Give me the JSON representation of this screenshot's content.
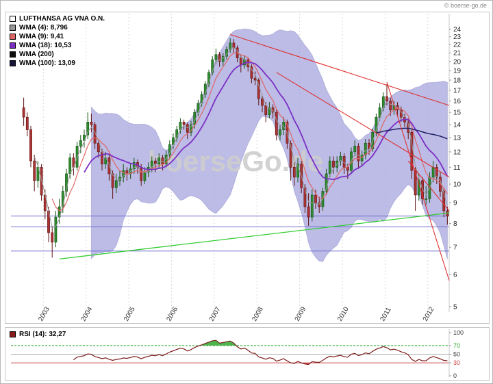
{
  "page": {
    "copyright": "© boerse-go.de"
  },
  "chart_data": [
    {
      "type": "candlestick",
      "instrument": "LUFTHANSA AG VNA O.N.",
      "interval": "monthly",
      "start": "2002-07",
      "legend": [
        {
          "label": "LUFTHANSA AG VNA O.N.",
          "swatch": "#ffffff"
        },
        {
          "label": "WMA (4): 8,796",
          "swatch": "#9a9a9a"
        },
        {
          "label": "WMA (9): 9,41",
          "swatch": "#e06565"
        },
        {
          "label": "WMA (18): 10,53",
          "swatch": "#7c2fc4"
        },
        {
          "label": "WMA (200)",
          "swatch": "#101010"
        },
        {
          "label": "WMA (100): 13,09",
          "swatch": "#16163a"
        }
      ],
      "y_axis": {
        "scale": "log",
        "min": 4.85,
        "max": 26.0,
        "ticks": [
          24,
          23,
          22,
          21,
          20,
          19,
          18,
          17,
          16,
          15,
          14,
          13,
          12,
          11,
          10,
          9,
          8,
          7,
          6,
          5
        ]
      },
      "x_ticks": [
        {
          "label": "2003",
          "index": 6
        },
        {
          "label": "2004",
          "index": 18
        },
        {
          "label": "2005",
          "index": 30
        },
        {
          "label": "2006",
          "index": 42
        },
        {
          "label": "2007",
          "index": 54
        },
        {
          "label": "2008",
          "index": 66
        },
        {
          "label": "2009",
          "index": 78
        },
        {
          "label": "2010",
          "index": 90
        },
        {
          "label": "2011",
          "index": 102
        },
        {
          "label": "2012",
          "index": 114
        }
      ],
      "ohlc": [
        [
          15.4,
          16.3,
          13.9,
          14.6
        ],
        [
          14.6,
          15.0,
          13.1,
          13.6
        ],
        [
          13.6,
          13.9,
          11.0,
          11.4
        ],
        [
          11.4,
          11.8,
          9.6,
          10.2
        ],
        [
          10.2,
          11.4,
          9.8,
          11.0
        ],
        [
          11.0,
          11.2,
          9.1,
          9.4
        ],
        [
          9.4,
          9.7,
          8.2,
          8.6
        ],
        [
          8.6,
          8.8,
          7.2,
          7.6
        ],
        [
          7.6,
          7.9,
          6.6,
          7.2
        ],
        [
          7.2,
          8.6,
          7.0,
          8.3
        ],
        [
          8.3,
          9.2,
          8.0,
          8.8
        ],
        [
          8.8,
          9.9,
          8.5,
          9.6
        ],
        [
          9.6,
          10.9,
          9.3,
          10.6
        ],
        [
          10.6,
          11.9,
          10.3,
          11.6
        ],
        [
          11.6,
          11.9,
          10.5,
          11.0
        ],
        [
          11.0,
          12.7,
          10.8,
          12.4
        ],
        [
          12.4,
          13.2,
          11.9,
          12.8
        ],
        [
          12.8,
          13.6,
          12.3,
          13.2
        ],
        [
          13.2,
          15.0,
          12.9,
          14.2
        ],
        [
          14.2,
          14.9,
          13.4,
          14.0
        ],
        [
          14.0,
          14.2,
          12.2,
          12.6
        ],
        [
          12.6,
          12.9,
          11.6,
          12.0
        ],
        [
          12.0,
          12.2,
          10.8,
          11.2
        ],
        [
          11.2,
          12.0,
          10.9,
          11.6
        ],
        [
          11.6,
          11.8,
          10.2,
          10.6
        ],
        [
          10.6,
          10.8,
          9.2,
          9.8
        ],
        [
          9.8,
          10.6,
          9.5,
          10.2
        ],
        [
          10.2,
          10.8,
          9.9,
          10.4
        ],
        [
          10.4,
          11.2,
          10.1,
          10.8
        ],
        [
          10.8,
          11.0,
          10.2,
          10.6
        ],
        [
          10.6,
          11.2,
          10.3,
          10.9
        ],
        [
          10.9,
          11.6,
          10.6,
          11.3
        ],
        [
          11.3,
          11.5,
          10.6,
          11.0
        ],
        [
          11.0,
          11.2,
          9.9,
          10.2
        ],
        [
          10.2,
          11.0,
          10.0,
          10.7
        ],
        [
          10.7,
          11.3,
          10.4,
          11.0
        ],
        [
          11.0,
          11.7,
          10.7,
          11.4
        ],
        [
          11.4,
          11.6,
          10.7,
          11.2
        ],
        [
          11.2,
          11.9,
          10.9,
          11.6
        ],
        [
          11.6,
          11.8,
          10.8,
          11.2
        ],
        [
          11.2,
          12.1,
          11.0,
          11.8
        ],
        [
          11.8,
          12.8,
          11.5,
          12.5
        ],
        [
          12.5,
          13.3,
          12.2,
          13.0
        ],
        [
          13.0,
          13.9,
          12.7,
          13.6
        ],
        [
          13.6,
          14.5,
          13.3,
          14.2
        ],
        [
          14.2,
          14.4,
          13.6,
          14.0
        ],
        [
          14.0,
          14.2,
          12.9,
          13.4
        ],
        [
          13.4,
          14.3,
          13.1,
          14.0
        ],
        [
          14.0,
          15.3,
          13.7,
          15.0
        ],
        [
          15.0,
          16.1,
          14.7,
          15.8
        ],
        [
          15.8,
          16.9,
          15.5,
          16.6
        ],
        [
          16.6,
          17.9,
          16.3,
          17.6
        ],
        [
          17.6,
          19.1,
          17.3,
          18.8
        ],
        [
          18.8,
          20.6,
          18.5,
          20.2
        ],
        [
          20.2,
          21.5,
          19.7,
          20.8
        ],
        [
          20.8,
          21.1,
          19.4,
          20.0
        ],
        [
          20.0,
          21.0,
          19.5,
          20.6
        ],
        [
          20.6,
          21.8,
          20.2,
          21.4
        ],
        [
          21.4,
          22.8,
          21.0,
          22.2
        ],
        [
          22.2,
          22.7,
          21.0,
          21.6
        ],
        [
          21.6,
          21.9,
          19.9,
          20.4
        ],
        [
          20.4,
          20.7,
          18.8,
          19.6
        ],
        [
          19.6,
          20.7,
          19.2,
          20.2
        ],
        [
          20.2,
          20.5,
          18.9,
          19.4
        ],
        [
          19.4,
          19.7,
          17.7,
          18.2
        ],
        [
          18.2,
          18.9,
          17.5,
          18.0
        ],
        [
          18.0,
          18.2,
          15.6,
          16.2
        ],
        [
          16.2,
          16.6,
          15.0,
          15.6
        ],
        [
          15.6,
          15.9,
          14.2,
          14.8
        ],
        [
          14.8,
          15.9,
          14.5,
          15.4
        ],
        [
          15.4,
          15.7,
          14.5,
          15.0
        ],
        [
          15.0,
          15.2,
          12.8,
          13.2
        ],
        [
          13.2,
          14.0,
          12.8,
          13.6
        ],
        [
          13.6,
          14.6,
          13.2,
          14.2
        ],
        [
          14.2,
          14.4,
          12.2,
          12.6
        ],
        [
          12.6,
          12.8,
          10.2,
          11.0
        ],
        [
          11.0,
          11.3,
          9.9,
          10.4
        ],
        [
          10.4,
          11.6,
          10.1,
          11.2
        ],
        [
          11.2,
          11.4,
          9.5,
          9.8
        ],
        [
          9.8,
          10.0,
          8.5,
          8.8
        ],
        [
          8.8,
          9.5,
          7.9,
          8.3
        ],
        [
          8.3,
          9.7,
          8.1,
          9.4
        ],
        [
          9.4,
          9.7,
          8.7,
          9.0
        ],
        [
          9.0,
          9.3,
          8.5,
          8.8
        ],
        [
          8.8,
          9.8,
          8.6,
          9.6
        ],
        [
          9.6,
          10.9,
          9.4,
          10.6
        ],
        [
          10.6,
          11.7,
          10.4,
          11.4
        ],
        [
          11.4,
          11.7,
          10.6,
          11.0
        ],
        [
          11.0,
          11.7,
          10.7,
          11.4
        ],
        [
          11.4,
          12.0,
          11.1,
          11.7
        ],
        [
          11.7,
          11.9,
          10.6,
          11.0
        ],
        [
          11.0,
          11.2,
          10.3,
          10.8
        ],
        [
          10.8,
          12.3,
          10.6,
          12.0
        ],
        [
          12.0,
          12.8,
          11.7,
          12.4
        ],
        [
          12.4,
          12.6,
          10.9,
          11.4
        ],
        [
          11.4,
          12.1,
          11.1,
          11.8
        ],
        [
          11.8,
          12.9,
          11.5,
          12.6
        ],
        [
          12.6,
          12.9,
          11.8,
          12.2
        ],
        [
          12.2,
          13.7,
          12.0,
          13.4
        ],
        [
          13.4,
          14.9,
          13.1,
          14.6
        ],
        [
          14.6,
          15.8,
          14.3,
          15.4
        ],
        [
          15.4,
          16.8,
          15.1,
          16.4
        ],
        [
          16.4,
          17.6,
          15.6,
          16.0
        ],
        [
          16.0,
          16.3,
          14.7,
          15.2
        ],
        [
          15.2,
          16.0,
          14.8,
          15.6
        ],
        [
          15.6,
          15.9,
          14.7,
          15.2
        ],
        [
          15.2,
          15.5,
          14.2,
          14.6
        ],
        [
          14.6,
          14.9,
          13.8,
          14.2
        ],
        [
          14.2,
          14.5,
          12.9,
          13.4
        ],
        [
          13.4,
          13.6,
          10.3,
          10.8
        ],
        [
          10.8,
          11.0,
          8.6,
          9.4
        ],
        [
          9.4,
          10.6,
          9.1,
          10.2
        ],
        [
          10.2,
          10.4,
          8.9,
          9.2
        ],
        [
          9.2,
          9.9,
          8.9,
          9.2
        ],
        [
          9.2,
          10.7,
          9.0,
          10.4
        ],
        [
          10.4,
          11.4,
          10.1,
          11.0
        ],
        [
          11.0,
          11.2,
          10.0,
          10.4
        ],
        [
          10.4,
          10.7,
          9.3,
          9.6
        ],
        [
          9.6,
          9.8,
          8.3,
          8.6
        ],
        [
          8.6,
          8.8,
          7.95,
          8.35
        ]
      ],
      "style": {
        "up_fill": "#2f8b2f",
        "up_stroke": "#155215",
        "down_fill": "#aa3333",
        "down_stroke": "#5e1212",
        "band_fill": "#a2a2dc",
        "band_opacity": 0.72,
        "grid_color": "#d9d9d9"
      },
      "wmas": [
        {
          "period": 4,
          "color": "#9a9a9a",
          "width": 1
        },
        {
          "period": 9,
          "color": "#e06565",
          "width": 1.2
        },
        {
          "period": 18,
          "color": "#7c2fc4",
          "width": 1.8
        },
        {
          "period": 100,
          "color": "#26266b",
          "width": 1.6
        },
        {
          "period": 200,
          "color": "#101010",
          "width": 1.2
        }
      ],
      "bollinger": {
        "period": 20,
        "stddev": 2
      },
      "hlines": {
        "values": [
          8.35,
          7.85,
          6.85
        ],
        "color": "#6a6ace"
      },
      "trendlines": [
        {
          "from": [
            10,
            6.55
          ],
          "to": [
            121,
            8.5
          ],
          "color": "#33cc33",
          "width": 1.3
        },
        {
          "from": [
            58,
            23.3
          ],
          "to": [
            121,
            15.6
          ],
          "color": "#e03030",
          "width": 1.1
        },
        {
          "from": [
            71,
            18.8
          ],
          "to": [
            121,
            10.4
          ],
          "color": "#e03030",
          "width": 1.1
        },
        {
          "from": [
            102,
            17.8
          ],
          "to": [
            121,
            5.8
          ],
          "color": "#e03030",
          "width": 1.1
        },
        {
          "from": [
            108,
            11.4
          ],
          "to": [
            121,
            8.6
          ],
          "color": "#e03030",
          "width": 1.1
        }
      ],
      "watermark": "boerseGo.de"
    },
    {
      "type": "line",
      "name": "RSI",
      "period": 14,
      "legend_label": "RSI (14): 32,27",
      "legend_swatch": "#8b1c1c",
      "last_value": "32,27",
      "range": [
        0,
        100
      ],
      "ticks": [
        {
          "value": 100,
          "color": "#333333"
        },
        {
          "value": 70,
          "color": "#2fa82f"
        },
        {
          "value": 50,
          "color": "#333333"
        },
        {
          "value": 30,
          "color": "#cc4444"
        },
        {
          "value": 0,
          "color": "#333333"
        }
      ],
      "levels": [
        {
          "value": 70,
          "color": "#2fa82f",
          "dash": "3,2"
        },
        {
          "value": 50,
          "color": "#b0b0b0",
          "dash": ""
        },
        {
          "value": 30,
          "color": "#cc5555",
          "dash": ""
        }
      ],
      "line_color": "#7a1a1a",
      "fill_above": {
        "threshold": 70,
        "color": "#2fa82f"
      },
      "fill_below": {
        "threshold": 30,
        "color": "#cc3333"
      }
    }
  ]
}
